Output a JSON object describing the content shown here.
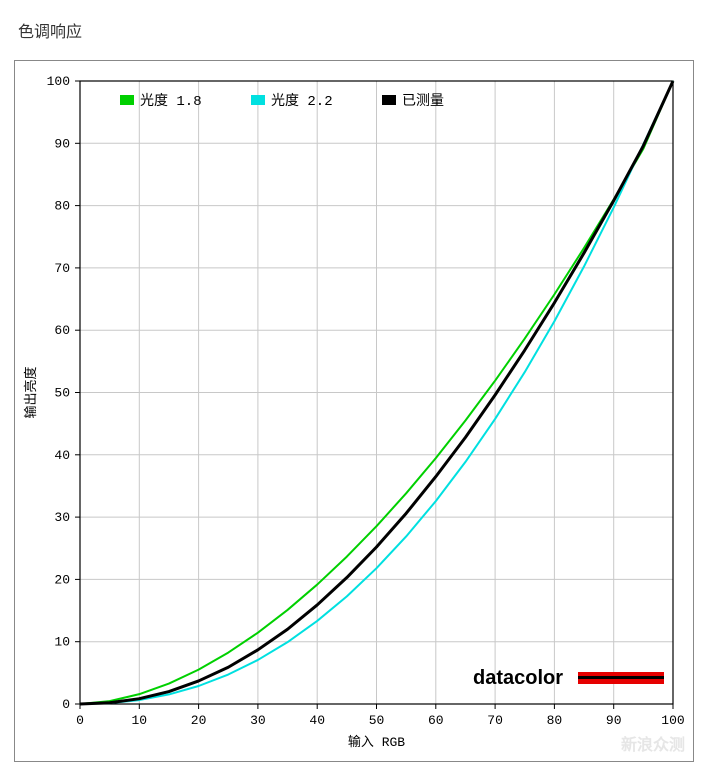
{
  "title": "色调响应",
  "chart": {
    "type": "line",
    "xlabel": "输入 RGB",
    "ylabel": "输出亮度",
    "label_fontsize": 13,
    "tick_fontsize": 13,
    "xlim": [
      0,
      100
    ],
    "ylim": [
      0,
      100
    ],
    "xtick_step": 10,
    "ytick_step": 10,
    "background_color": "#ffffff",
    "grid_color": "#c8c8c8",
    "axis_color": "#000000",
    "series": [
      {
        "name": "gamma-1-8",
        "label": "光度 1.8",
        "color": "#00d000",
        "line_width": 2,
        "swatch_type": "rect",
        "xs": [
          0,
          5,
          10,
          15,
          20,
          25,
          30,
          35,
          40,
          45,
          50,
          55,
          60,
          65,
          70,
          75,
          80,
          85,
          90,
          95,
          100
        ],
        "ys": [
          0,
          0.46,
          1.58,
          3.28,
          5.52,
          8.25,
          11.45,
          15.1,
          19.17,
          23.66,
          28.54,
          33.82,
          39.47,
          45.5,
          51.9,
          58.65,
          65.75,
          73.2,
          81.0,
          89.13,
          100
        ]
      },
      {
        "name": "gamma-2-2",
        "label": "光度 2.2",
        "color": "#00e0e0",
        "line_width": 2,
        "swatch_type": "rect",
        "xs": [
          0,
          5,
          10,
          15,
          20,
          25,
          30,
          35,
          40,
          45,
          50,
          55,
          60,
          65,
          70,
          75,
          80,
          85,
          90,
          95,
          100
        ],
        "ys": [
          0,
          0.14,
          0.63,
          1.54,
          2.89,
          4.73,
          7.07,
          9.93,
          13.33,
          17.28,
          21.8,
          26.89,
          32.57,
          38.86,
          45.76,
          53.28,
          61.44,
          70.24,
          79.7,
          89.83,
          100
        ]
      },
      {
        "name": "measured",
        "label": "已测量",
        "color": "#000000",
        "line_width": 3,
        "swatch_type": "rect",
        "xs": [
          0,
          5,
          10,
          15,
          20,
          25,
          30,
          35,
          40,
          45,
          50,
          55,
          60,
          65,
          70,
          75,
          80,
          85,
          90,
          95,
          100
        ],
        "ys": [
          0,
          0.2,
          0.85,
          2.0,
          3.7,
          5.9,
          8.7,
          12.0,
          15.9,
          20.3,
          25.2,
          30.6,
          36.5,
          42.8,
          49.6,
          56.8,
          64.4,
          72.4,
          80.8,
          89.6,
          100
        ]
      }
    ],
    "legend": {
      "position": "top-left",
      "x_offset": 40,
      "y_offset": 22,
      "fontsize": 14,
      "text_color": "#000000"
    },
    "brand": {
      "text": "datacolor",
      "text_color": "#000000",
      "bar_color": "#e60000",
      "fontsize": 20
    },
    "watermark": "新浪众测"
  }
}
